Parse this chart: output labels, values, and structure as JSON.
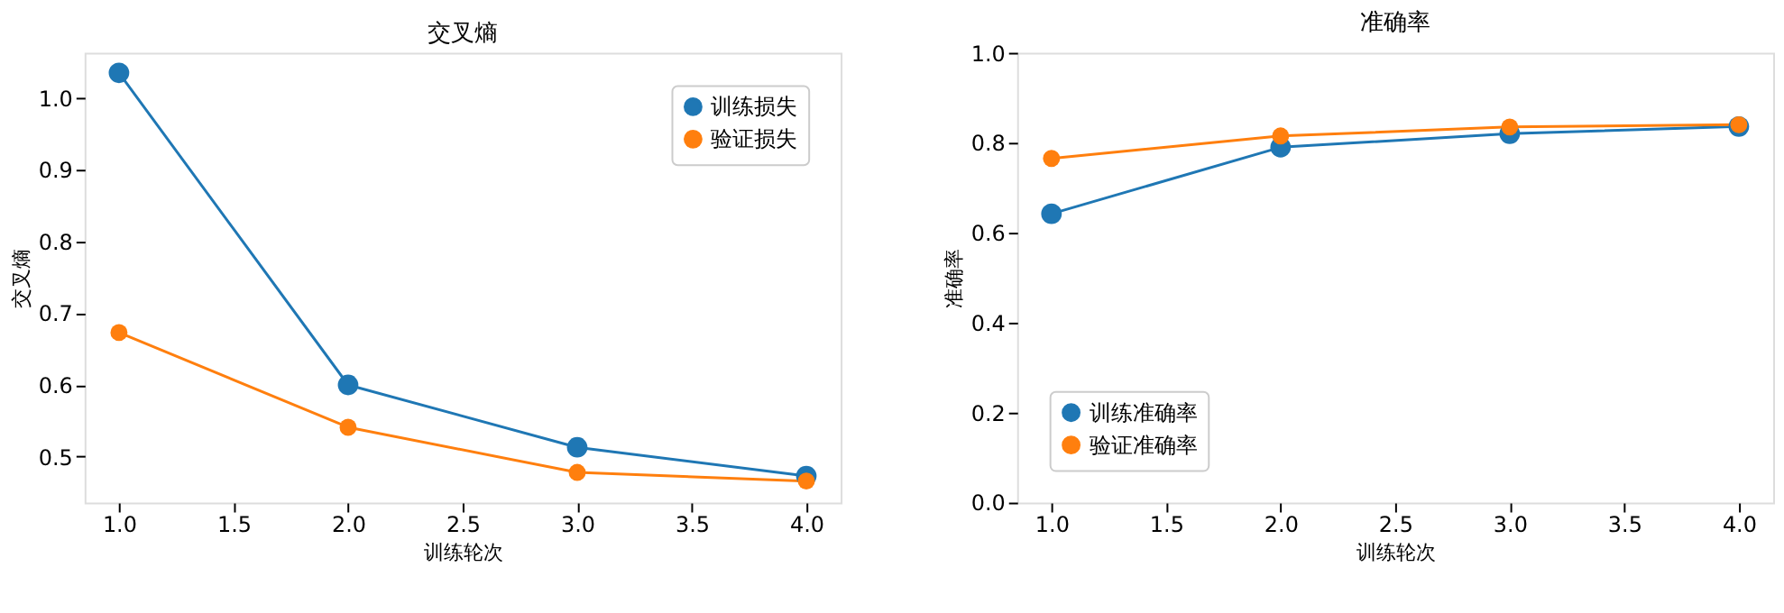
{
  "chart_data": [
    {
      "type": "line",
      "title": "交叉熵",
      "xlabel": "训练轮次",
      "ylabel": "交叉熵",
      "x": [
        1,
        2,
        3,
        4
      ],
      "xlim": [
        0.85,
        4.15
      ],
      "xticks": [
        {
          "value": 1,
          "label": "1.0"
        },
        {
          "value": 1.5,
          "label": "1.5"
        },
        {
          "value": 2,
          "label": "2.0"
        },
        {
          "value": 2.5,
          "label": "2.5"
        },
        {
          "value": 3,
          "label": "3.0"
        },
        {
          "value": 3.5,
          "label": "3.5"
        },
        {
          "value": 4,
          "label": "4.0"
        }
      ],
      "ylim": [
        0.436,
        1.063
      ],
      "yticks": [
        {
          "value": 0.5,
          "label": "0.5"
        },
        {
          "value": 0.6,
          "label": "0.6"
        },
        {
          "value": 0.7,
          "label": "0.7"
        },
        {
          "value": 0.8,
          "label": "0.8"
        },
        {
          "value": 0.9,
          "label": "0.9"
        },
        {
          "value": 1.0,
          "label": "1.0"
        }
      ],
      "marker": "circle",
      "line_style": "solid",
      "grid": false,
      "legend": "top right",
      "series": [
        {
          "name": "训练损失",
          "color": "#1f77b4",
          "values": [
            1.035,
            0.6,
            0.513,
            0.473
          ]
        },
        {
          "name": "验证损失",
          "color": "#ff7f0e",
          "values": [
            0.673,
            0.541,
            0.478,
            0.466
          ]
        }
      ]
    },
    {
      "type": "line",
      "title": "准确率",
      "xlabel": "训练轮次",
      "ylabel": "准确率",
      "x": [
        1,
        2,
        3,
        4
      ],
      "xlim": [
        0.85,
        4.15
      ],
      "xticks": [
        {
          "value": 1,
          "label": "1.0"
        },
        {
          "value": 1.5,
          "label": "1.5"
        },
        {
          "value": 2,
          "label": "2.0"
        },
        {
          "value": 2.5,
          "label": "2.5"
        },
        {
          "value": 3,
          "label": "3.0"
        },
        {
          "value": 3.5,
          "label": "3.5"
        },
        {
          "value": 4,
          "label": "4.0"
        }
      ],
      "ylim": [
        0,
        1
      ],
      "yticks": [
        {
          "value": 0,
          "label": "0.0"
        },
        {
          "value": 0.2,
          "label": "0.2"
        },
        {
          "value": 0.4,
          "label": "0.4"
        },
        {
          "value": 0.6,
          "label": "0.6"
        },
        {
          "value": 0.8,
          "label": "0.8"
        },
        {
          "value": 1.0,
          "label": "1.0"
        }
      ],
      "marker": "circle",
      "line_style": "solid",
      "grid": false,
      "legend": "bottom left",
      "series": [
        {
          "name": "训练准确率",
          "color": "#1f77b4",
          "values": [
            0.642,
            0.79,
            0.82,
            0.836
          ]
        },
        {
          "name": "验证准确率",
          "color": "#ff7f0e",
          "values": [
            0.765,
            0.815,
            0.835,
            0.84
          ]
        }
      ]
    }
  ]
}
